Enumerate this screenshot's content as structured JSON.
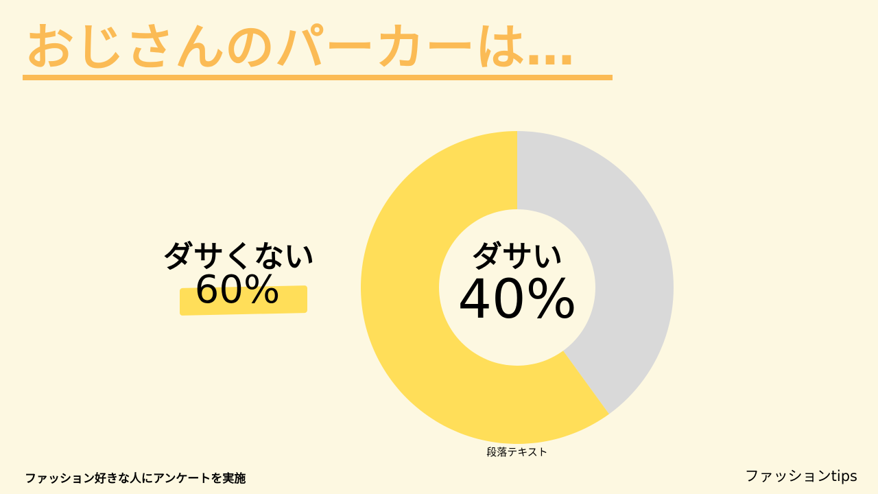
{
  "title": "おじさんのパーカーは…",
  "chart_data": {
    "type": "pie",
    "slices": [
      {
        "label": "ダサくない",
        "value": 60,
        "display": "60%",
        "color": "#ffde59"
      },
      {
        "label": "ダサい",
        "value": 40,
        "display": "40%",
        "color": "#d9d9d9"
      }
    ],
    "title": "",
    "legend": "none"
  },
  "labels": {
    "left_label": "ダサくない",
    "left_value": "60%",
    "center_label": "ダサい",
    "center_value": "40%"
  },
  "caption": "段落テキスト",
  "footer": {
    "note": "ファッション好きな人にアンケートを実施",
    "brand": "ファッションtips"
  },
  "colors": {
    "background": "#fdf8e1",
    "title": "#fbbb55",
    "highlight": "#ffde59",
    "donut_inner": "#fdf8e1"
  }
}
